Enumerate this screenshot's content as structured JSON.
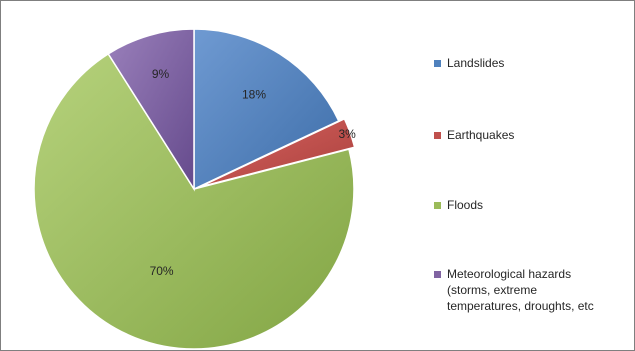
{
  "chart_data": {
    "type": "pie",
    "slices": [
      {
        "label": "Landslides",
        "value": 18,
        "data_label": "18%",
        "color": "#4f81bd"
      },
      {
        "label": "Earthquakes",
        "value": 3,
        "data_label": "3%",
        "color": "#c0504d"
      },
      {
        "label": "Floods",
        "value": 70,
        "data_label": "70%",
        "color": "#9bbb59"
      },
      {
        "label": "Meteorological hazards (storms, extreme temperatures, droughts, etc",
        "value": 9,
        "data_label": "9%",
        "color": "#8064a2"
      }
    ],
    "legend": {
      "position": "right",
      "entries": [
        {
          "lines": [
            "Landslides"
          ]
        },
        {
          "lines": [
            "Earthquakes"
          ]
        },
        {
          "lines": [
            "Floods"
          ]
        },
        {
          "lines": [
            "Meteorological hazards",
            "(storms, extreme",
            "temperatures, droughts, etc"
          ]
        }
      ]
    }
  }
}
